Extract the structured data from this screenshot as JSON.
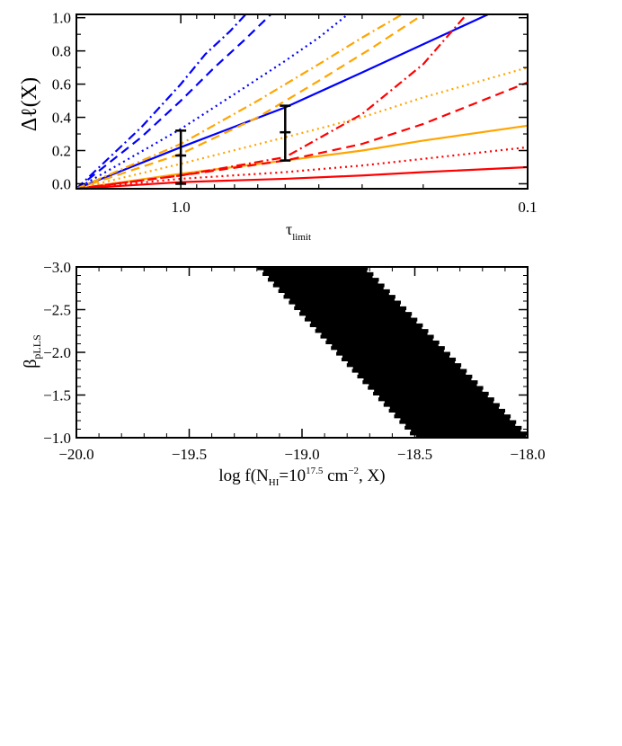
{
  "chart_data": [
    {
      "type": "line",
      "title": "",
      "xlabel": {
        "main": "τ",
        "sub": "limit"
      },
      "ylabel": "Δℓ(X)",
      "x_tick_labels": [
        "1.0",
        "0.1"
      ],
      "y_tick_labels": [
        "0.0",
        "0.2",
        "0.4",
        "0.6",
        "0.8",
        "1.0"
      ],
      "x_scale": "log, reversed",
      "xlim": [
        2.0,
        0.1
      ],
      "ylim": [
        -0.03,
        1.02
      ],
      "grid": false,
      "legend": "none",
      "line_styles": [
        "solid",
        "dotted",
        "dashed",
        "dash-dot"
      ],
      "series": [
        {
          "color": "#0000ff",
          "style": "solid",
          "x": [
            2.0,
            1.0,
            0.5,
            0.3,
            0.2,
            0.13
          ],
          "y": [
            -0.03,
            0.22,
            0.46,
            0.67,
            0.84,
            1.02
          ]
        },
        {
          "color": "#0000ff",
          "style": "dotted",
          "x": [
            2.0,
            1.0,
            0.7,
            0.5,
            0.4,
            0.33
          ],
          "y": [
            -0.03,
            0.33,
            0.54,
            0.74,
            0.88,
            1.02
          ]
        },
        {
          "color": "#0000ff",
          "style": "dashed",
          "x": [
            2.0,
            1.3,
            1.0,
            0.8,
            0.66,
            0.55
          ],
          "y": [
            -0.03,
            0.28,
            0.5,
            0.7,
            0.86,
            1.02
          ]
        },
        {
          "color": "#0000ff",
          "style": "dash-dot",
          "x": [
            2.0,
            1.3,
            1.0,
            0.85,
            0.72,
            0.65
          ],
          "y": [
            -0.03,
            0.34,
            0.6,
            0.78,
            0.92,
            1.02
          ]
        },
        {
          "color": "#ffa500",
          "style": "solid",
          "x": [
            2.0,
            1.0,
            0.5,
            0.3,
            0.2,
            0.1
          ],
          "y": [
            -0.03,
            0.06,
            0.14,
            0.2,
            0.26,
            0.35
          ]
        },
        {
          "color": "#ffa500",
          "style": "dotted",
          "x": [
            2.0,
            1.0,
            0.5,
            0.3,
            0.2,
            0.1
          ],
          "y": [
            -0.03,
            0.12,
            0.28,
            0.4,
            0.52,
            0.7
          ]
        },
        {
          "color": "#ffa500",
          "style": "dashed",
          "x": [
            2.0,
            1.0,
            0.6,
            0.4,
            0.28,
            0.2
          ],
          "y": [
            -0.03,
            0.18,
            0.4,
            0.62,
            0.82,
            1.02
          ]
        },
        {
          "color": "#ffa500",
          "style": "dash-dot",
          "x": [
            2.0,
            1.0,
            0.6,
            0.4,
            0.3,
            0.23
          ],
          "y": [
            -0.03,
            0.24,
            0.5,
            0.72,
            0.88,
            1.02
          ]
        },
        {
          "color": "#ff0000",
          "style": "solid",
          "x": [
            2.0,
            1.0,
            0.5,
            0.3,
            0.2,
            0.1
          ],
          "y": [
            -0.03,
            0.01,
            0.03,
            0.05,
            0.07,
            0.1
          ]
        },
        {
          "color": "#ff0000",
          "style": "dotted",
          "x": [
            2.0,
            1.0,
            0.5,
            0.3,
            0.2,
            0.1
          ],
          "y": [
            -0.03,
            0.03,
            0.07,
            0.11,
            0.15,
            0.22
          ]
        },
        {
          "color": "#ff0000",
          "style": "dashed",
          "x": [
            2.0,
            1.0,
            0.5,
            0.3,
            0.2,
            0.1
          ],
          "y": [
            -0.03,
            0.05,
            0.14,
            0.24,
            0.36,
            0.61
          ]
        },
        {
          "color": "#ff0000",
          "style": "dash-dot",
          "x": [
            2.0,
            1.0,
            0.5,
            0.3,
            0.2,
            0.15
          ],
          "y": [
            -0.03,
            0.05,
            0.16,
            0.42,
            0.72,
            1.02
          ]
        }
      ],
      "error_bars": [
        {
          "x": 1.0,
          "y": 0.17,
          "low": 0.0,
          "high": 0.32,
          "color": "#000000"
        },
        {
          "x": 0.5,
          "y": 0.31,
          "low": 0.14,
          "high": 0.47,
          "color": "#000000"
        }
      ]
    },
    {
      "type": "area",
      "title": "",
      "xlabel": {
        "pre": "log f(N",
        "sub1": "HI",
        "mid": "=10",
        "sup": "17.5",
        "mid2": " cm",
        "sup2": "−2",
        "post": ", X)"
      },
      "ylabel": {
        "main": "β",
        "sub": "pLLS"
      },
      "x_tick_labels": [
        "−20.0",
        "−19.5",
        "−19.0",
        "−18.5",
        "−18.0"
      ],
      "y_tick_labels": [
        "−3.0",
        "−2.5",
        "−2.0",
        "−1.5",
        "−1.0"
      ],
      "xlim": [
        -20.0,
        -18.0
      ],
      "ylim": [
        -3.0,
        -1.0
      ],
      "y_axis_reversed": true,
      "grid": false,
      "legend": "none",
      "fill_color": "#000000",
      "region": {
        "left_edge": [
          [
            -19.2,
            -3.0
          ],
          [
            -18.5,
            -1.0
          ]
        ],
        "right_edge": [
          [
            -18.73,
            -3.0
          ],
          [
            -18.0,
            -1.0
          ]
        ]
      }
    }
  ]
}
